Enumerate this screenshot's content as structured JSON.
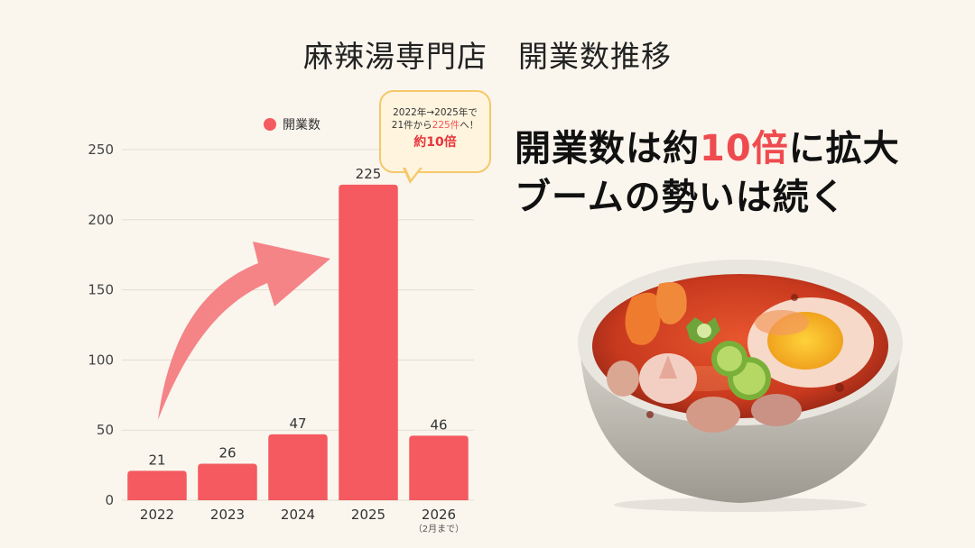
{
  "title": "麻辣湯専門店　開業数推移",
  "chart_data": {
    "type": "bar",
    "categories": [
      "2022",
      "2023",
      "2024",
      "2025",
      "2026"
    ],
    "category_notes": [
      "",
      "",
      "",
      "",
      "（2月まで）"
    ],
    "series": [
      {
        "name": "開業数",
        "values": [
          21,
          26,
          47,
          225,
          46
        ]
      }
    ],
    "data_labels": [
      "21",
      "26",
      "47",
      "225",
      "46"
    ],
    "ylim": [
      0,
      250
    ],
    "yticks": [
      0,
      50,
      100,
      150,
      200,
      250
    ],
    "grid": true,
    "legend_position": "top",
    "bar_color": "#f45a5f",
    "arrow_color": "#f47a7e"
  },
  "callout": {
    "line1": "2022年→2025年で",
    "line2_prefix": "21件から",
    "line2_highlight": "225件",
    "line2_suffix": "へ！",
    "emphasis": "約10倍"
  },
  "headline": {
    "line1_prefix": "開業数は約",
    "line1_highlight": "10倍",
    "line1_suffix": "に拡大",
    "line2": "ブームの勢いは続く"
  },
  "colors": {
    "background": "#faf6ee",
    "accent_red": "#ef4b4f",
    "callout_border": "#f5c869",
    "callout_fill": "#fff4de"
  }
}
